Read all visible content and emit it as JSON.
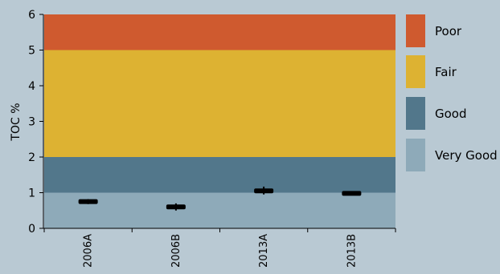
{
  "colors": {
    "background": "#b9c9d3",
    "poor": "#cf5a2f",
    "fair": "#ddb232",
    "good": "#52778b",
    "very_good": "#8eaab9",
    "marker": "#000000"
  },
  "chart_data": {
    "type": "scatter",
    "title": "",
    "xlabel": "",
    "ylabel": "TOC %",
    "ylim": [
      0,
      6
    ],
    "yticks": [
      "0",
      "1",
      "2",
      "3",
      "4",
      "5",
      "6"
    ],
    "categories": [
      "2006A",
      "2006B",
      "2013A",
      "2013B"
    ],
    "values": [
      0.75,
      0.6,
      1.05,
      0.98
    ],
    "error_low": [
      0.68,
      0.5,
      0.95,
      0.96
    ],
    "error_high": [
      0.82,
      0.7,
      1.17,
      1.0
    ],
    "bands": [
      {
        "label": "Very Good",
        "from": 0,
        "to": 1,
        "color": "#8eaab9"
      },
      {
        "label": "Good",
        "from": 1,
        "to": 2,
        "color": "#52778b"
      },
      {
        "label": "Fair",
        "from": 2,
        "to": 5,
        "color": "#ddb232"
      },
      {
        "label": "Poor",
        "from": 5,
        "to": 6,
        "color": "#cf5a2f"
      }
    ],
    "legend": [
      "Poor",
      "Fair",
      "Good",
      "Very Good"
    ],
    "legend_position": "right",
    "grid": false
  }
}
